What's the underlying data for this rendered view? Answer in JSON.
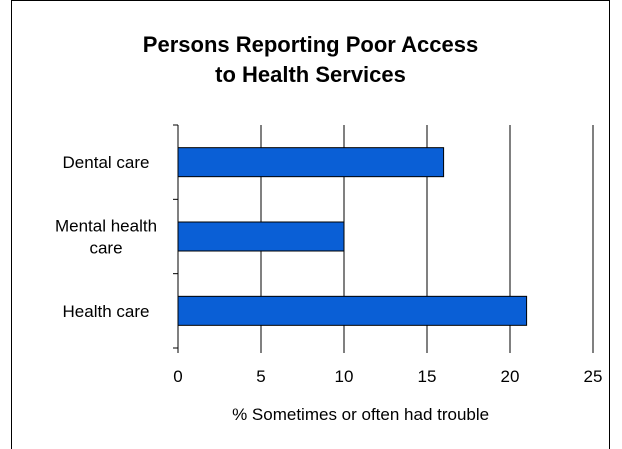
{
  "chart_data": {
    "type": "bar",
    "orientation": "horizontal",
    "title_lines": [
      "Persons Reporting Poor Access",
      "to Health Services"
    ],
    "categories": [
      {
        "lines": [
          "Dental care"
        ],
        "value": 16
      },
      {
        "lines": [
          "Mental health",
          "care"
        ],
        "value": 10
      },
      {
        "lines": [
          "Health care"
        ],
        "value": 21
      }
    ],
    "xlabel": "% Sometimes or often had trouble",
    "ylabel": "",
    "xlim": [
      0,
      25
    ],
    "xticks": [
      "0",
      "5",
      "10",
      "15",
      "20",
      "25"
    ],
    "grid": "vertical",
    "bar_color": "#0a5fd6",
    "bar_edge_color": "#000000"
  }
}
